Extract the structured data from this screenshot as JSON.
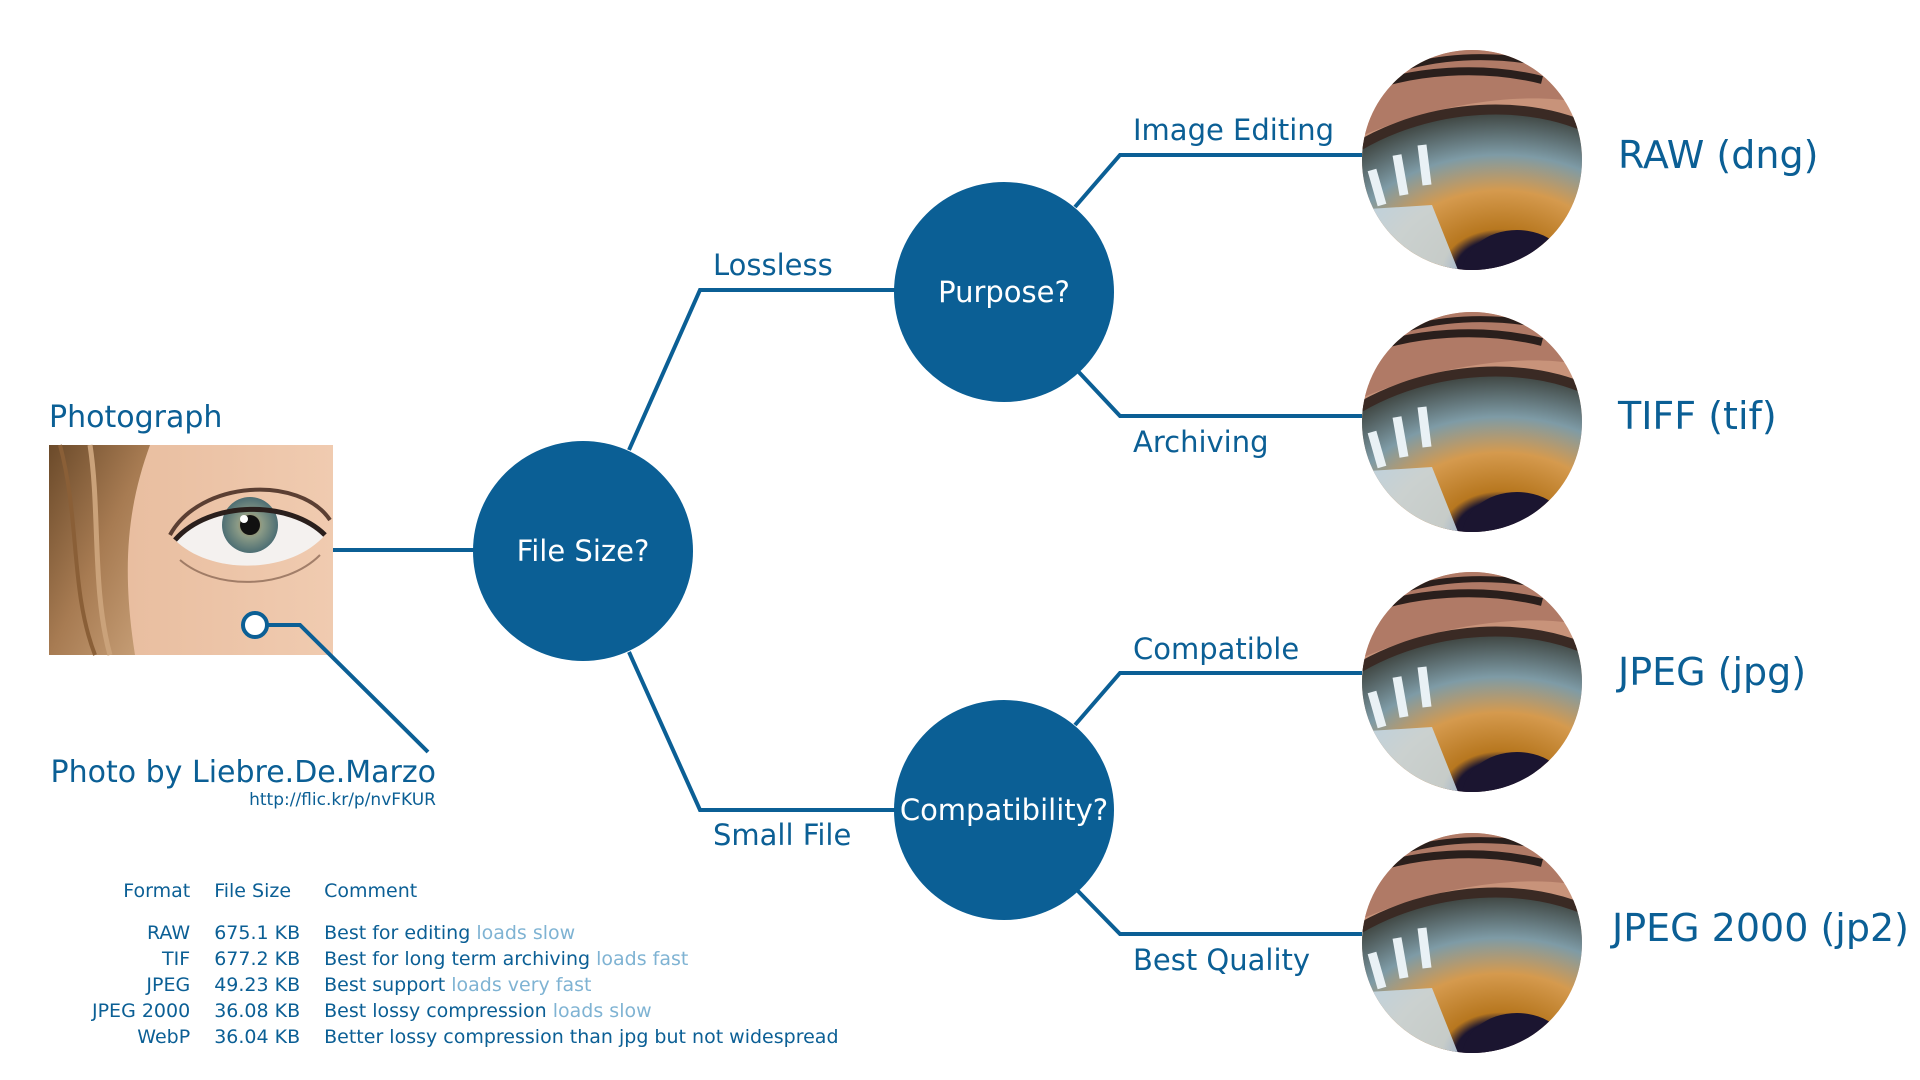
{
  "source": {
    "title": "Photograph",
    "credit": "Photo by Liebre.De.Marzo",
    "credit_url": "http://flic.kr/p/nvFKUR"
  },
  "nodes": {
    "file_size": "File Size?",
    "purpose": "Purpose?",
    "compatibility": "Compatibility?"
  },
  "edges": {
    "lossless": "Lossless",
    "small_file": "Small File",
    "image_editing": "Image Editing",
    "archiving": "Archiving",
    "compatible": "Compatible",
    "best_quality": "Best Quality"
  },
  "results": {
    "raw": "RAW (dng)",
    "tiff": "TIFF (tif)",
    "jpeg": "JPEG (jpg)",
    "jpeg2000": "JPEG 2000 (jp2)"
  },
  "table": {
    "headers": [
      "Format",
      "File Size",
      "Comment"
    ],
    "rows": [
      {
        "format": "RAW",
        "size": "675.1 KB",
        "comment": "Best for editing",
        "note": "loads slow"
      },
      {
        "format": "TIF",
        "size": "677.2 KB",
        "comment": "Best for long term archiving",
        "note": "loads fast"
      },
      {
        "format": "JPEG",
        "size": "49.23 KB",
        "comment": "Best support",
        "note": "loads very fast"
      },
      {
        "format": "JPEG 2000",
        "size": "36.08 KB",
        "comment": "Best lossy compression",
        "note": "loads slow"
      },
      {
        "format": "WebP",
        "size": "36.04 KB",
        "comment": "Better lossy compression than jpg but not widespread",
        "note": ""
      }
    ]
  },
  "colors": {
    "primary": "#0b5f95",
    "note": "#7fb3d3",
    "node_fill": "#0b5f95",
    "node_text": "#ffffff"
  },
  "icons": {
    "source_photo": "eye-photo",
    "result_thumbnails": "eye-closeup"
  }
}
